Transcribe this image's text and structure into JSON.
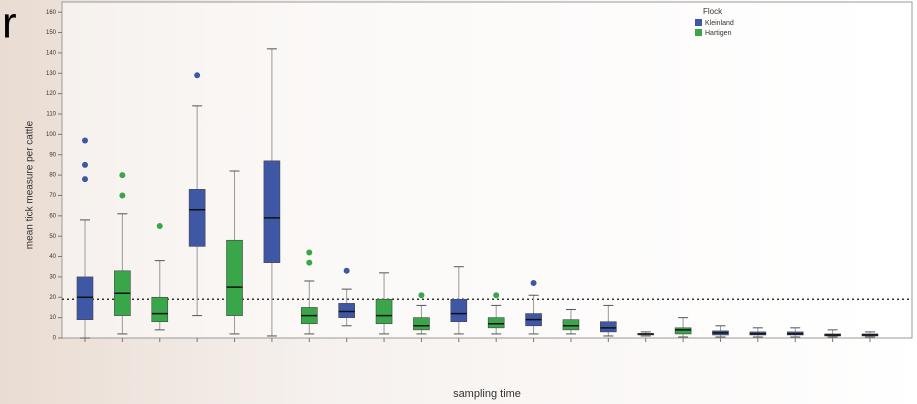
{
  "panel_letter": "r",
  "chart_data": {
    "type": "box",
    "y_label": "mean tick measure per cattle",
    "x_label": "sampling time",
    "legend_title": "Flock",
    "categories": [
      null,
      null,
      null,
      null,
      null,
      null,
      null,
      null,
      null,
      null,
      null,
      null,
      null,
      null,
      null,
      null,
      null,
      null,
      null,
      null,
      null,
      null
    ],
    "ylim": [
      0,
      165
    ],
    "yticks": [
      0,
      10,
      20,
      30,
      40,
      50,
      60,
      70,
      80,
      90,
      100,
      110,
      120,
      130,
      140,
      150,
      160
    ],
    "reference_line": 19,
    "series": [
      {
        "name": "Kleinland",
        "color": "#3f58a6",
        "boxes": [
          {
            "category": 0,
            "min": 0,
            "q1": 9,
            "median": 20,
            "q3": 30,
            "max": 58,
            "outliers": [
              97,
              85,
              78
            ]
          },
          {
            "category": 3,
            "min": 11,
            "q1": 45,
            "median": 63,
            "q3": 73,
            "max": 114,
            "outliers": [
              129
            ]
          },
          {
            "category": 5,
            "min": 1,
            "q1": 37,
            "median": 59,
            "q3": 87,
            "max": 142,
            "outliers": []
          },
          {
            "category": 7,
            "min": 6,
            "q1": 10,
            "median": 13,
            "q3": 17,
            "max": 24,
            "outliers": [
              33
            ]
          },
          {
            "category": 10,
            "min": 2,
            "q1": 8,
            "median": 12,
            "q3": 19,
            "max": 35,
            "outliers": []
          },
          {
            "category": 12,
            "min": 2,
            "q1": 6,
            "median": 9,
            "q3": 12,
            "max": 21,
            "outliers": [
              27
            ]
          },
          {
            "category": 14,
            "min": 1,
            "q1": 3,
            "median": 5,
            "q3": 8,
            "max": 16,
            "outliers": []
          },
          {
            "category": 15,
            "min": 1,
            "q1": 2,
            "median": 2,
            "q3": 2,
            "max": 3,
            "outliers": []
          },
          {
            "category": 17,
            "min": 0.5,
            "q1": 1.5,
            "median": 2.5,
            "q3": 3.5,
            "max": 6,
            "outliers": []
          },
          {
            "category": 18,
            "min": 0.5,
            "q1": 1.5,
            "median": 2,
            "q3": 3,
            "max": 5,
            "outliers": []
          },
          {
            "category": 19,
            "min": 0.5,
            "q1": 1.5,
            "median": 2,
            "q3": 3,
            "max": 5,
            "outliers": []
          },
          {
            "category": 20,
            "min": 0.5,
            "q1": 1,
            "median": 1.5,
            "q3": 2,
            "max": 4,
            "outliers": []
          },
          {
            "category": 21,
            "min": 0.5,
            "q1": 1,
            "median": 1.5,
            "q3": 2,
            "max": 3,
            "outliers": []
          }
        ]
      },
      {
        "name": "Hartigen",
        "color": "#3aa64a",
        "boxes": [
          {
            "category": 1,
            "min": 2,
            "q1": 11,
            "median": 22,
            "q3": 33,
            "max": 61,
            "outliers": [
              80,
              70
            ]
          },
          {
            "category": 2,
            "min": 4,
            "q1": 8,
            "median": 12,
            "q3": 20,
            "max": 38,
            "outliers": [
              55
            ]
          },
          {
            "category": 4,
            "min": 2,
            "q1": 11,
            "median": 25,
            "q3": 48,
            "max": 82,
            "outliers": []
          },
          {
            "category": 6,
            "min": 2,
            "q1": 7,
            "median": 11,
            "q3": 15,
            "max": 28,
            "outliers": [
              37,
              42
            ]
          },
          {
            "category": 8,
            "min": 2,
            "q1": 7,
            "median": 11,
            "q3": 19,
            "max": 32,
            "outliers": []
          },
          {
            "category": 9,
            "min": 2,
            "q1": 4,
            "median": 6,
            "q3": 10,
            "max": 16,
            "outliers": [
              21
            ]
          },
          {
            "category": 11,
            "min": 2,
            "q1": 5,
            "median": 7,
            "q3": 10,
            "max": 16,
            "outliers": [
              21
            ]
          },
          {
            "category": 13,
            "min": 2,
            "q1": 4,
            "median": 6,
            "q3": 9,
            "max": 14,
            "outliers": []
          },
          {
            "category": 16,
            "min": 0.5,
            "q1": 2,
            "median": 4,
            "q3": 5,
            "max": 10,
            "outliers": []
          }
        ]
      }
    ]
  }
}
